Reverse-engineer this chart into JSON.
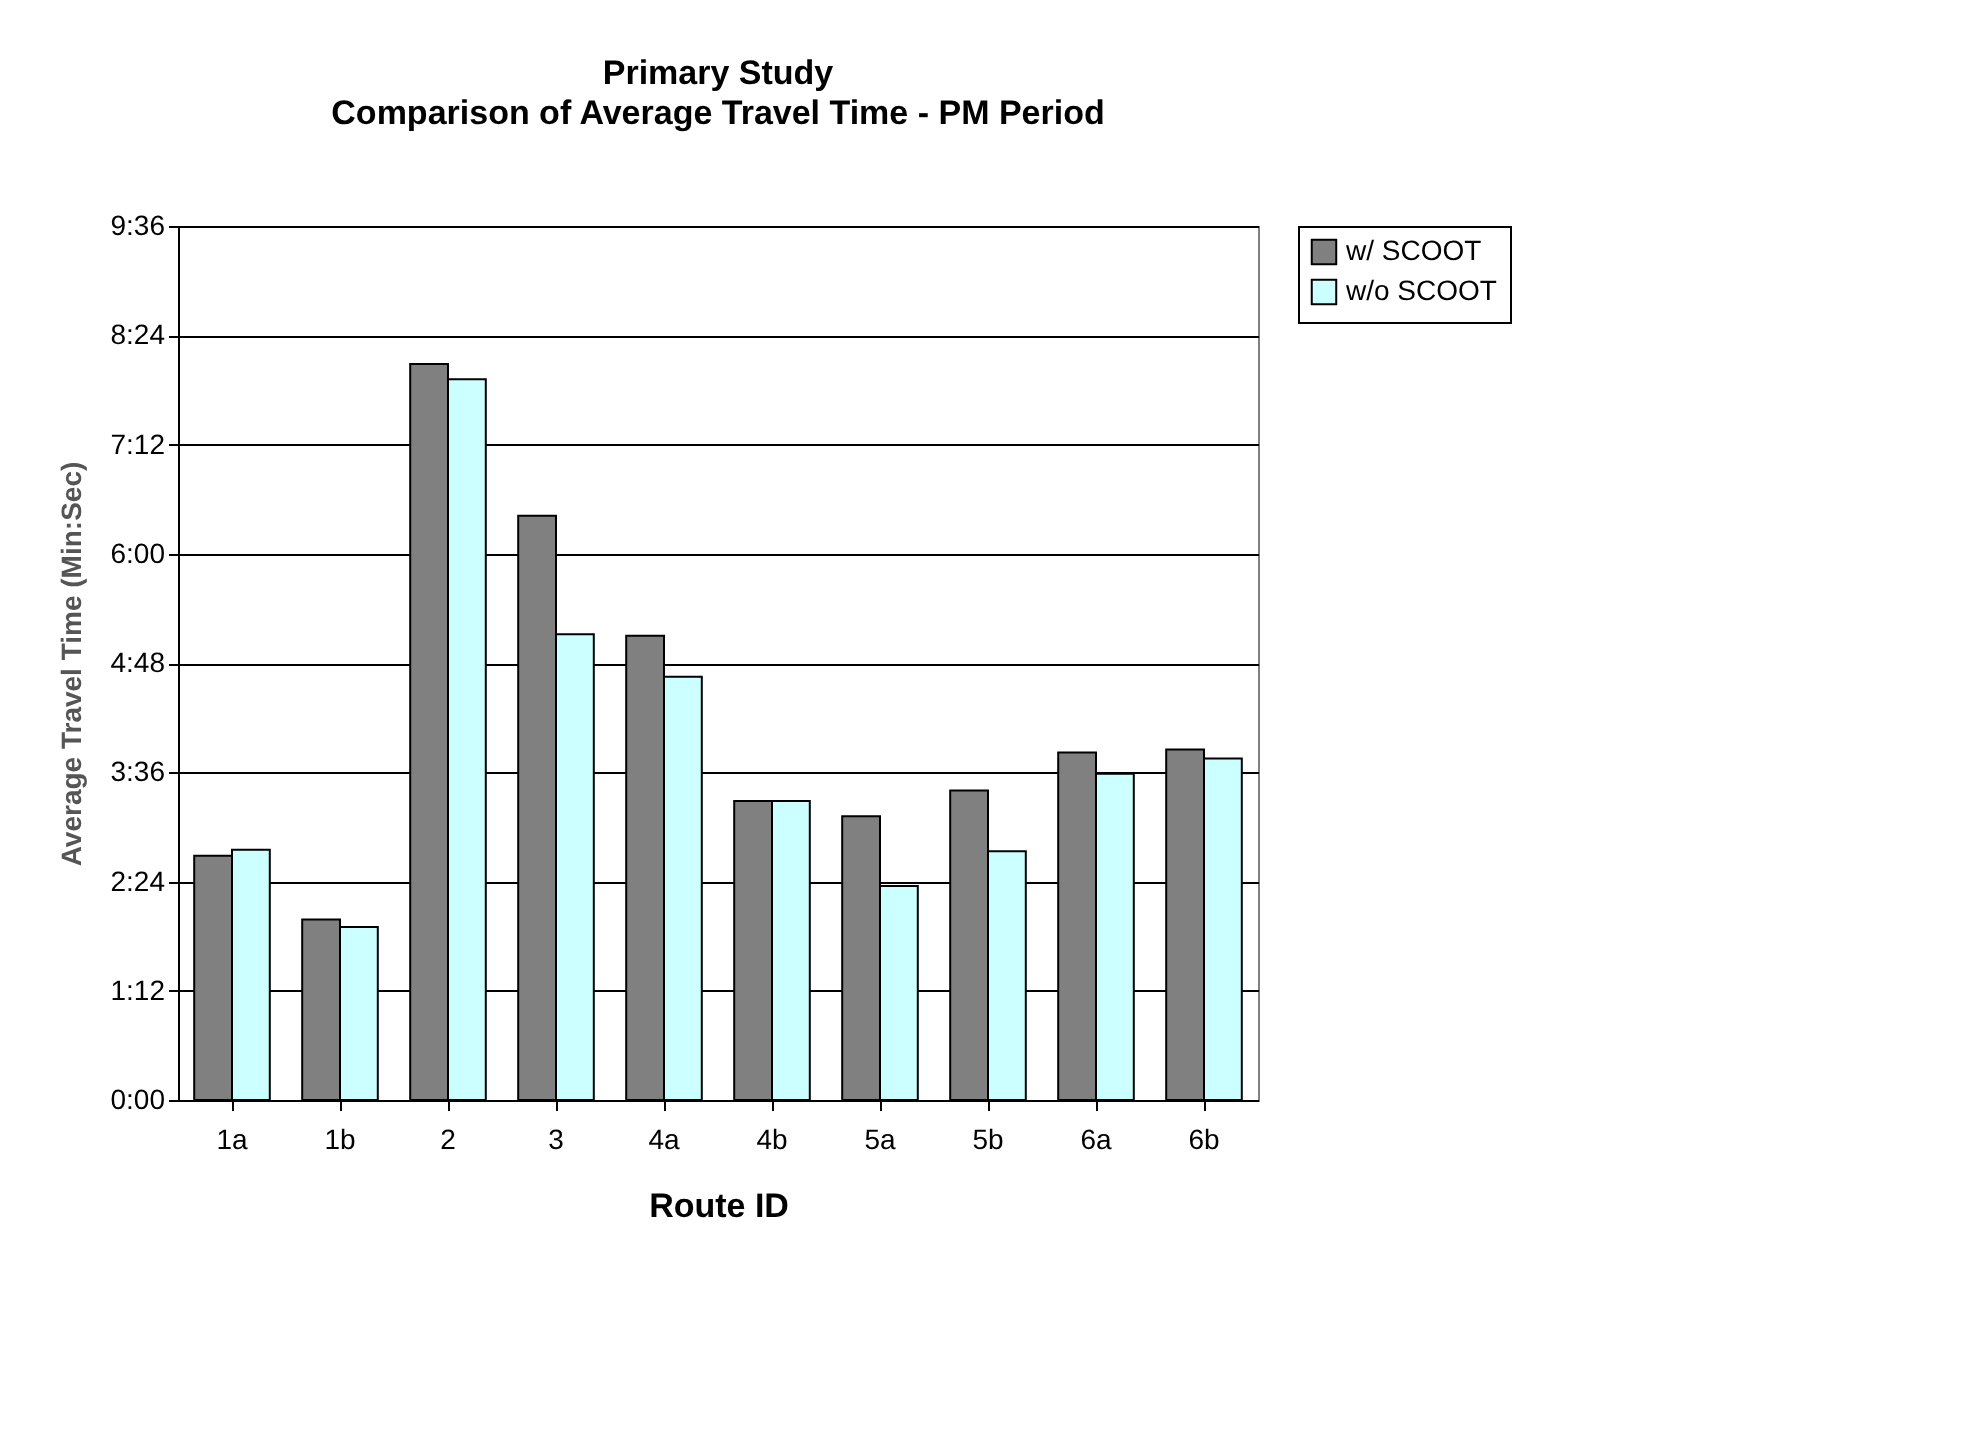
{
  "chart_data": {
    "type": "bar",
    "title": "Primary Study",
    "subtitle": "Comparison of Average Travel Time - PM Period",
    "xlabel": "Route ID",
    "ylabel": "Average Travel Time (Min:Sec)",
    "categories": [
      "1a",
      "1b",
      "2",
      "3",
      "4a",
      "4b",
      "5a",
      "5b",
      "6a",
      "6b"
    ],
    "series": [
      {
        "name": "w/ SCOOT",
        "color": "#808080",
        "values": [
          161,
          119,
          485,
          385,
          306,
          197,
          187,
          204,
          229,
          231
        ]
      },
      {
        "name": "w/o SCOOT",
        "color": "#ccffff",
        "values": [
          165,
          114,
          475,
          307,
          279,
          197,
          141,
          164,
          215,
          225
        ]
      }
    ],
    "ylim": [
      0,
      576
    ],
    "yticks": [
      {
        "value": 0,
        "label": "0:00"
      },
      {
        "value": 72,
        "label": "1:12"
      },
      {
        "value": 144,
        "label": "2:24"
      },
      {
        "value": 216,
        "label": "3:36"
      },
      {
        "value": 288,
        "label": "4:48"
      },
      {
        "value": 360,
        "label": "6:00"
      },
      {
        "value": 432,
        "label": "7:12"
      },
      {
        "value": 504,
        "label": "8:24"
      },
      {
        "value": 576,
        "label": "9:36"
      }
    ],
    "grid": "y",
    "legend": "right"
  }
}
